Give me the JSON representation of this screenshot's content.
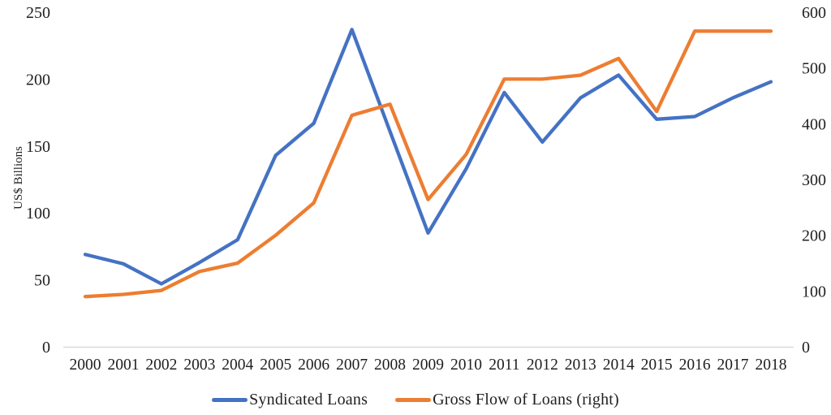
{
  "page": {
    "background_color": "#ffffff",
    "text_color": "#1f1f1f",
    "axis_line_color": "#d9d9d9"
  },
  "chart_data": {
    "type": "line",
    "title": "",
    "grid": "off",
    "legend_position": "bottom-center",
    "categories": [
      "2000",
      "2001",
      "2002",
      "2003",
      "2004",
      "2005",
      "2006",
      "2007",
      "2008",
      "2009",
      "2010",
      "2011",
      "2012",
      "2013",
      "2014",
      "2015",
      "2016",
      "2017",
      "2018"
    ],
    "series": [
      {
        "name": "Syndicated Loans",
        "axis": "left",
        "color": "#4472C4",
        "values": [
          69,
          62,
          47,
          63,
          80,
          143,
          167,
          237,
          161,
          85,
          133,
          190,
          153,
          186,
          203,
          170,
          172,
          186,
          198
        ]
      },
      {
        "name": "Gross Flow of Loans (right)",
        "axis": "right",
        "color": "#ED7D31",
        "values": [
          90,
          94,
          101,
          135,
          150,
          200,
          258,
          415,
          435,
          264,
          345,
          480,
          480,
          487,
          517,
          422,
          566,
          566,
          566
        ]
      }
    ],
    "axes": {
      "left": {
        "label": "US$ Billions",
        "min": 0,
        "max": 250,
        "tick_step": 50,
        "ticks": [
          0,
          50,
          100,
          150,
          200,
          250
        ]
      },
      "right": {
        "label": "",
        "min": 0,
        "max": 600,
        "tick_step": 100,
        "ticks": [
          0,
          100,
          200,
          300,
          400,
          500,
          600
        ]
      },
      "x": {
        "label": "",
        "ticks": [
          "2000",
          "2001",
          "2002",
          "2003",
          "2004",
          "2005",
          "2006",
          "2007",
          "2008",
          "2009",
          "2010",
          "2011",
          "2012",
          "2013",
          "2014",
          "2015",
          "2016",
          "2017",
          "2018"
        ]
      }
    }
  }
}
